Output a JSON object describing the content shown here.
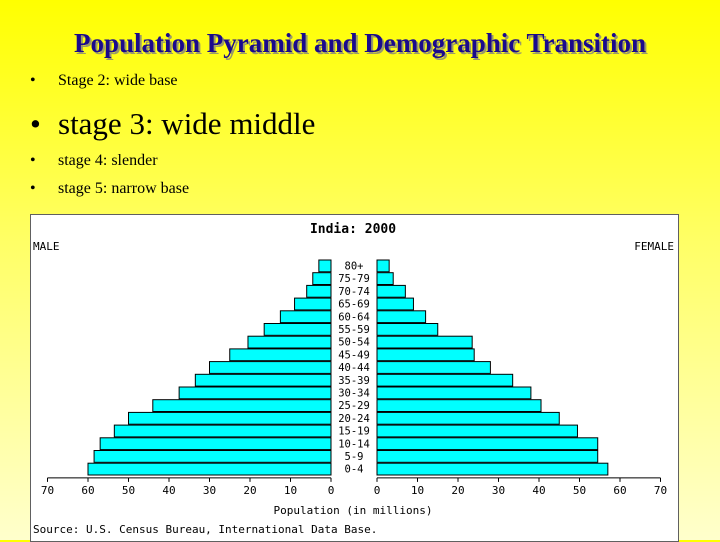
{
  "slide": {
    "title": "Population Pyramid and Demographic Transition",
    "bullets": [
      {
        "marker": "•",
        "text": "Stage 2: wide base"
      },
      {
        "marker": "•",
        "text": "stage 3: wide middle"
      },
      {
        "marker": "•",
        "text": "stage 4: slender"
      },
      {
        "marker": "•",
        "text": "stage 5: narrow base"
      }
    ]
  },
  "chart_data": {
    "type": "bar",
    "orientation": "horizontal-pyramid",
    "title": "India: 2000",
    "left_label": "MALE",
    "right_label": "FEMALE",
    "xlabel": "Population (in millions)",
    "source": "Source: U.S. Census Bureau, International Data Base.",
    "xlim": [
      0,
      70
    ],
    "x_ticks": [
      70,
      60,
      50,
      40,
      30,
      20,
      10,
      0
    ],
    "bar_color": "#00ffff",
    "bar_outline": "#000000",
    "categories": [
      "80+",
      "75-79",
      "70-74",
      "65-69",
      "60-64",
      "55-59",
      "50-54",
      "45-49",
      "40-44",
      "35-39",
      "30-34",
      "25-29",
      "20-24",
      "15-19",
      "10-14",
      "5-9",
      "0-4"
    ],
    "series": [
      {
        "name": "MALE",
        "values": [
          3,
          4.5,
          6,
          9,
          12.5,
          16.5,
          20.5,
          25,
          30,
          33.5,
          37.5,
          44,
          50,
          53.5,
          57,
          58.5,
          60
        ]
      },
      {
        "name": "FEMALE",
        "values": [
          3,
          4,
          7,
          9,
          12,
          15,
          23.5,
          24,
          28,
          33.5,
          38,
          40.5,
          45,
          49.5,
          54.5,
          54.5,
          57
        ]
      }
    ]
  }
}
